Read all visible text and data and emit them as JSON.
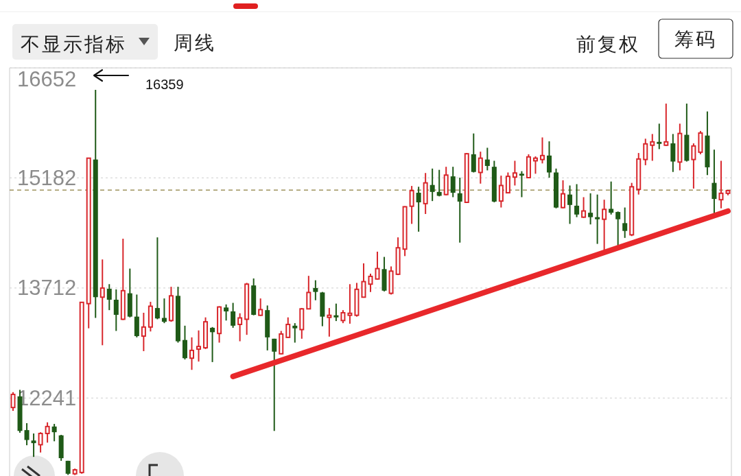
{
  "chart_data": {
    "type": "candlestick",
    "categories": [
      null,
      null,
      null,
      null,
      null,
      null,
      null,
      null,
      null,
      null,
      null,
      null,
      null,
      null,
      null,
      null,
      null,
      null,
      null,
      null,
      null,
      null,
      null,
      null,
      null,
      null,
      null,
      null,
      null,
      null,
      null,
      null,
      null,
      null,
      null,
      null,
      null,
      null,
      null,
      null,
      null,
      null,
      null,
      null,
      null,
      null,
      null,
      null,
      null,
      null,
      null,
      null,
      null,
      null,
      null,
      null,
      null,
      null,
      null,
      null,
      null,
      null,
      null,
      null,
      null,
      null,
      null,
      null,
      null,
      null,
      null,
      null,
      null,
      null,
      null,
      null,
      null,
      null,
      null,
      null,
      null,
      null,
      null,
      null,
      null,
      null,
      null,
      null,
      null,
      null,
      null,
      null,
      null,
      null,
      null,
      null,
      null,
      null,
      null,
      null,
      null,
      null,
      null,
      null,
      null
    ],
    "ohlc": [
      [
        12115,
        12320,
        12070,
        12290
      ],
      [
        12264,
        12351,
        11778,
        11802
      ],
      [
        11813,
        11906,
        11611,
        11681
      ],
      [
        11674,
        11768,
        11455,
        11639
      ],
      [
        11618,
        11785,
        11514,
        11768
      ],
      [
        11768,
        11917,
        11646,
        11861
      ],
      [
        11861,
        11896,
        11664,
        11785
      ],
      [
        11743,
        11750,
        11403,
        11438
      ],
      [
        11403,
        11403,
        11215,
        11230
      ],
      [
        11230,
        11299,
        11213,
        11282
      ],
      [
        11247,
        13520,
        11230,
        13520
      ],
      [
        13503,
        15446,
        13173,
        15446
      ],
      [
        15428,
        16359,
        13312,
        13589
      ],
      [
        13589,
        14093,
        12947,
        13711
      ],
      [
        13701,
        13763,
        13416,
        13555
      ],
      [
        13555,
        13693,
        13138,
        13353
      ],
      [
        13294,
        14370,
        13284,
        13676
      ],
      [
        13641,
        13971,
        13319,
        13329
      ],
      [
        13329,
        13624,
        13052,
        13069
      ],
      [
        13069,
        13381,
        12868,
        13190
      ],
      [
        13190,
        13527,
        13131,
        13468
      ],
      [
        13444,
        14388,
        13294,
        13305
      ],
      [
        13312,
        13572,
        13242,
        13260
      ],
      [
        13277,
        13728,
        13260,
        13607
      ],
      [
        13607,
        13728,
        12982,
        13000
      ],
      [
        13017,
        13208,
        12757,
        12774
      ],
      [
        12774,
        13052,
        12618,
        12878
      ],
      [
        12895,
        13145,
        12729,
        12930
      ],
      [
        12913,
        13319,
        12896,
        13260
      ],
      [
        13180,
        13190,
        12722,
        13121
      ],
      [
        13104,
        13468,
        12982,
        13458
      ],
      [
        13451,
        13492,
        13277,
        13399
      ],
      [
        13399,
        13513,
        13180,
        13208
      ],
      [
        13225,
        13374,
        13000,
        13312
      ],
      [
        13294,
        13780,
        13086,
        13763
      ],
      [
        13746,
        13839,
        13347,
        13353
      ],
      [
        13347,
        13572,
        13340,
        13423
      ],
      [
        13416,
        13478,
        12878,
        13052
      ],
      [
        13034,
        13034,
        11802,
        12861
      ],
      [
        12833,
        13138,
        12826,
        13097
      ],
      [
        13052,
        13319,
        13045,
        13225
      ],
      [
        13208,
        13242,
        12982,
        13173
      ],
      [
        13156,
        13444,
        13034,
        13433
      ],
      [
        13433,
        13874,
        13433,
        13652
      ],
      [
        13711,
        13815,
        13548,
        13659
      ],
      [
        13652,
        13659,
        13201,
        13329
      ],
      [
        13319,
        13444,
        13062,
        13347
      ],
      [
        13347,
        13503,
        13270,
        13319
      ],
      [
        13277,
        13416,
        13242,
        13381
      ],
      [
        13347,
        13763,
        13235,
        13374
      ],
      [
        13347,
        13780,
        13329,
        13694
      ],
      [
        13589,
        14041,
        13582,
        13797
      ],
      [
        13763,
        13902,
        13659,
        13867
      ],
      [
        13832,
        14197,
        13825,
        13971
      ],
      [
        13964,
        14127,
        13666,
        13676
      ],
      [
        13641,
        14000,
        13624,
        13937
      ],
      [
        13895,
        14388,
        13884,
        14249
      ],
      [
        14231,
        14804,
        14138,
        14797
      ],
      [
        14804,
        15075,
        14568,
        15012
      ],
      [
        14984,
        15064,
        14464,
        14856
      ],
      [
        14839,
        15248,
        14700,
        15116
      ],
      [
        15088,
        15307,
        14873,
        14995
      ],
      [
        14995,
        15290,
        14936,
        14943
      ],
      [
        14960,
        15331,
        14950,
        15220
      ],
      [
        15203,
        15331,
        14925,
        14984
      ],
      [
        14977,
        15186,
        14318,
        14866
      ],
      [
        14856,
        15515,
        14856,
        15505
      ],
      [
        15498,
        15776,
        15255,
        15262
      ],
      [
        15255,
        15533,
        15106,
        15446
      ],
      [
        15428,
        15585,
        15283,
        15342
      ],
      [
        15331,
        15411,
        14856,
        14866
      ],
      [
        14873,
        15213,
        14787,
        15081
      ],
      [
        14984,
        15255,
        14977,
        15203
      ],
      [
        15193,
        15411,
        15081,
        15248
      ],
      [
        15238,
        15272,
        14925,
        15213
      ],
      [
        15186,
        15498,
        15179,
        15463
      ],
      [
        15411,
        15470,
        15238,
        15446
      ],
      [
        15428,
        15723,
        15376,
        15481
      ],
      [
        15481,
        15671,
        15186,
        15255
      ],
      [
        15255,
        15307,
        14776,
        14786
      ],
      [
        14786,
        15151,
        14776,
        14970
      ],
      [
        14960,
        15081,
        14568,
        14821
      ],
      [
        14811,
        15099,
        14658,
        14693
      ],
      [
        14658,
        14925,
        14648,
        14741
      ],
      [
        14717,
        14977,
        14561,
        14658
      ],
      [
        14658,
        14960,
        14301,
        14630
      ],
      [
        14630,
        14891,
        14214,
        14762
      ],
      [
        14769,
        15134,
        14693,
        14717
      ],
      [
        14727,
        14734,
        14266,
        14630
      ],
      [
        14578,
        14787,
        14381,
        14474
      ],
      [
        14422,
        15116,
        14405,
        15064
      ],
      [
        15030,
        15515,
        14960,
        15435
      ],
      [
        15428,
        15706,
        15352,
        15637
      ],
      [
        15619,
        15769,
        15411,
        15664
      ],
      [
        15664,
        15907,
        15567,
        15637
      ],
      [
        15619,
        16175,
        15609,
        15664
      ],
      [
        15644,
        15769,
        15262,
        15401
      ],
      [
        15394,
        15907,
        15283,
        15776
      ],
      [
        15758,
        16175,
        15401,
        15411
      ],
      [
        15428,
        15644,
        15040,
        15609
      ],
      [
        15526,
        15810,
        15498,
        15782
      ],
      [
        15748,
        16070,
        15220,
        15324
      ],
      [
        15116,
        15560,
        14693,
        14901
      ],
      [
        14891,
        15411,
        14776,
        14977
      ],
      [
        14977,
        15019,
        14950,
        15012
      ]
    ],
    "series": [
      {
        "type": "line",
        "color": "#e8282b",
        "values": [
          null,
          null,
          null,
          null,
          null,
          null,
          null,
          null,
          null,
          null,
          null,
          null,
          null,
          null,
          null,
          null,
          null,
          null,
          null,
          null,
          null,
          null,
          null,
          null,
          null,
          null,
          null,
          null,
          null,
          null,
          null,
          null,
          12530,
          null,
          null,
          null,
          null,
          null,
          null,
          null,
          null,
          null,
          null,
          null,
          null,
          null,
          null,
          null,
          null,
          null,
          null,
          null,
          null,
          null,
          null,
          null,
          null,
          null,
          null,
          null,
          null,
          null,
          null,
          null,
          null,
          null,
          null,
          null,
          null,
          null,
          null,
          null,
          null,
          null,
          null,
          null,
          null,
          null,
          null,
          null,
          null,
          null,
          null,
          null,
          null,
          null,
          null,
          null,
          null,
          null,
          null,
          null,
          null,
          null,
          null,
          null,
          null,
          null,
          null,
          null,
          null,
          null,
          null,
          null,
          14740
        ]
      }
    ],
    "ylim": [
      11200,
      16652
    ],
    "yticks": [
      16652,
      15182,
      13712,
      12241
    ],
    "grid": "y",
    "tick_labels": "y",
    "ref_lines": [
      {
        "axis": "y",
        "value": 15019,
        "color": "#8b7d3c",
        "line_style": "dashed"
      }
    ],
    "annotations": [
      "不显示指标",
      "周线",
      "前复权",
      "筹码",
      "16359"
    ]
  }
}
